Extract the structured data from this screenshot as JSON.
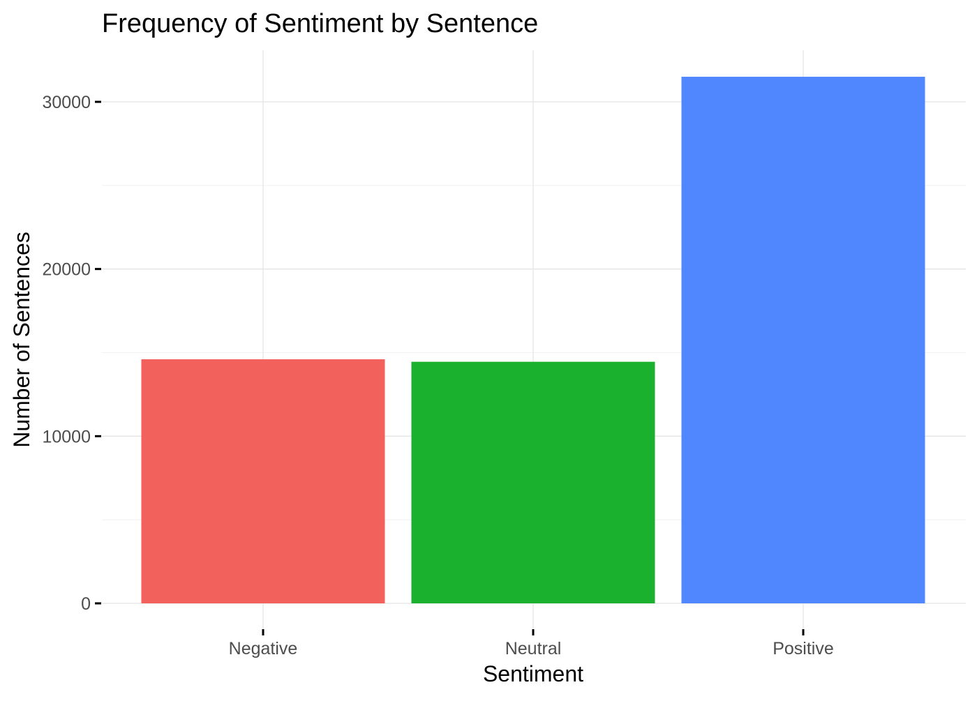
{
  "chart_data": {
    "type": "bar",
    "title": "Frequency of Sentiment by Sentence",
    "xlabel": "Sentiment",
    "ylabel": "Number of Sentences",
    "categories": [
      "Negative",
      "Neutral",
      "Positive"
    ],
    "values": [
      14600,
      14450,
      31500
    ],
    "colors": [
      "#F2615C",
      "#1AB12E",
      "#5087FF"
    ],
    "ylim": [
      0,
      32500
    ],
    "yticks": [
      0,
      10000,
      20000,
      30000
    ],
    "ytick_labels": [
      "0",
      "10000",
      "20000",
      "30000"
    ],
    "grid": true,
    "legend": "none"
  }
}
